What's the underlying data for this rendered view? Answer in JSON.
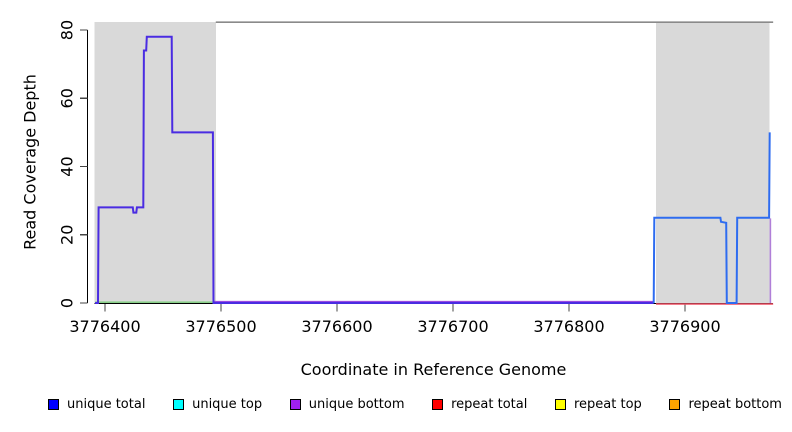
{
  "figure": {
    "ylabel": "Read Coverage Depth",
    "xlabel": "Coordinate in Reference Genome"
  },
  "chart_data": {
    "type": "line",
    "title": "",
    "xlabel": "Coordinate in Reference Genome",
    "ylabel": "Read Coverage Depth",
    "xlim": [
      3776391,
      3776976
    ],
    "ylim": [
      0,
      82
    ],
    "x_ticks": [
      3776400,
      3776500,
      3776600,
      3776700,
      3776800,
      3776900
    ],
    "y_ticks": [
      0,
      20,
      40,
      60,
      80
    ],
    "grid": false,
    "legend_position": "bottom",
    "shaded_regions": [
      {
        "from": 3776391,
        "to": 3776495.5,
        "color": "#d9d9d9"
      },
      {
        "from": 3776875,
        "to": 3776972.8,
        "color": "#d9d9d9"
      }
    ],
    "top_boundary_line": {
      "from": 3776495.5,
      "to": 3776976,
      "level": 82.3,
      "color": "#8a8a8a"
    },
    "series": [
      {
        "name": "unique total / unique bottom (overlapping, left block and zero baseline)",
        "color": "#4a2ce2",
        "points": [
          [
            3776391.5,
            0
          ],
          [
            3776394,
            0
          ],
          [
            3776394.5,
            28
          ],
          [
            3776424,
            28
          ],
          [
            3776424.5,
            26.5
          ],
          [
            3776427,
            26.5
          ],
          [
            3776427.5,
            28
          ],
          [
            3776433,
            28
          ],
          [
            3776433.5,
            74
          ],
          [
            3776435.5,
            74
          ],
          [
            3776436,
            78
          ],
          [
            3776457.5,
            78
          ],
          [
            3776458,
            50
          ],
          [
            3776493,
            50
          ],
          [
            3776493.5,
            0
          ],
          [
            3776873,
            0
          ]
        ]
      },
      {
        "name": "unique total (right block)",
        "color": "#2e6cf0",
        "points": [
          [
            3776873,
            0
          ],
          [
            3776873.5,
            25
          ],
          [
            3776930.5,
            25
          ],
          [
            3776931,
            23.8
          ],
          [
            3776935.5,
            23.5
          ],
          [
            3776936,
            0
          ],
          [
            3776944.5,
            0
          ],
          [
            3776945,
            25
          ],
          [
            3776972.5,
            25
          ],
          [
            3776973,
            50
          ]
        ]
      }
    ],
    "baseline_overlays": [
      {
        "name": "green baseline (left shaded region)",
        "color": "#7ccd7c",
        "from": 3776391.5,
        "to": 3776495,
        "value": 0,
        "dy": -0.8
      },
      {
        "name": "purple zero baseline (middle)",
        "color": "#9a4ae0",
        "from": 3776494,
        "to": 3776873,
        "value": 0,
        "dy": -1.4
      },
      {
        "name": "red baseline (right shaded region)",
        "color": "#ef5064",
        "from": 3776875,
        "to": 3776976,
        "value": 0,
        "dy": 1.0
      }
    ],
    "edge_lines": [
      {
        "name": "purple right-edge vertical",
        "color": "#b07fd8",
        "x": 3776973.6,
        "v0": 0,
        "v1": 24.8
      }
    ]
  },
  "legend": {
    "items": [
      {
        "label": "unique total",
        "color": "#0000ff"
      },
      {
        "label": "unique top",
        "color": "#00ffff"
      },
      {
        "label": "unique bottom",
        "color": "#a020f0"
      },
      {
        "label": "repeat total",
        "color": "#ff0000"
      },
      {
        "label": "repeat top",
        "color": "#ffff00"
      },
      {
        "label": "repeat bottom",
        "color": "#ffa500"
      }
    ]
  }
}
